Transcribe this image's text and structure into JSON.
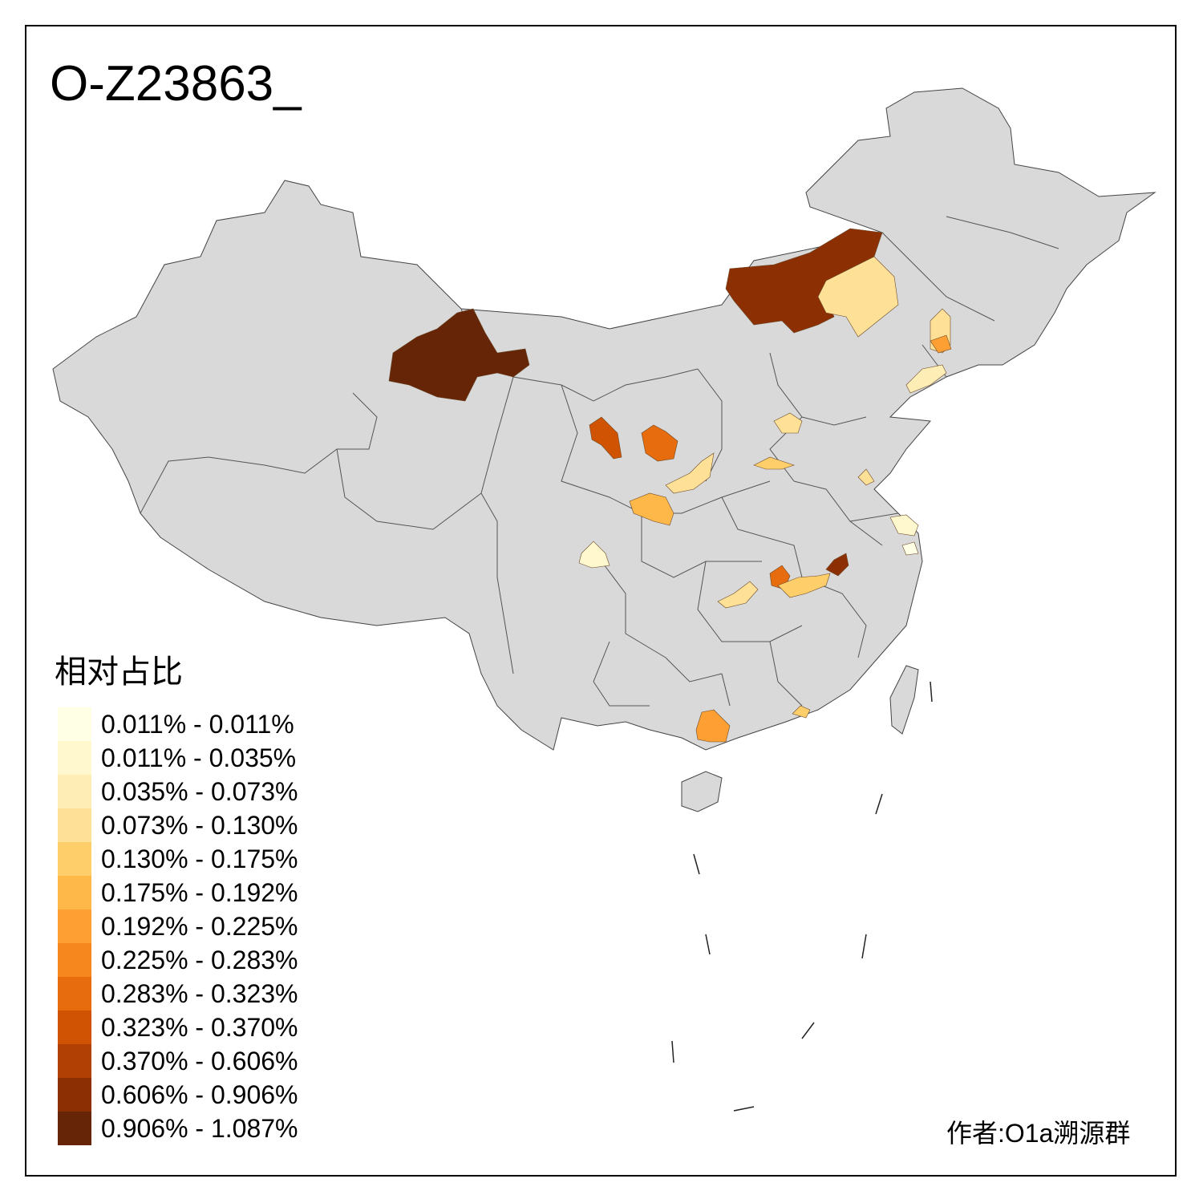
{
  "title": "O-Z23863_",
  "legend": {
    "title": "相对占比",
    "items": [
      {
        "label": "0.011% - 0.011%",
        "color": "#FFFFE5"
      },
      {
        "label": "0.011% - 0.035%",
        "color": "#FFF7CD"
      },
      {
        "label": "0.035% - 0.073%",
        "color": "#FEEDB4"
      },
      {
        "label": "0.073% - 0.130%",
        "color": "#FEE196"
      },
      {
        "label": "0.130% - 0.175%",
        "color": "#FECE6A"
      },
      {
        "label": "0.175% - 0.192%",
        "color": "#FEB84A"
      },
      {
        "label": "0.192% - 0.225%",
        "color": "#FD9F32"
      },
      {
        "label": "0.225% - 0.283%",
        "color": "#F6861E"
      },
      {
        "label": "0.283% - 0.323%",
        "color": "#E66C0E"
      },
      {
        "label": "0.323% - 0.370%",
        "color": "#D05303"
      },
      {
        "label": "0.370% - 0.606%",
        "color": "#B04003"
      },
      {
        "label": "0.606% - 0.906%",
        "color": "#8C3004"
      },
      {
        "label": "0.906% - 1.087%",
        "color": "#662506"
      }
    ]
  },
  "author": "作者:O1a溯源群",
  "colors": {
    "land": "#D9D9D9",
    "border": "#444444",
    "frame": "#000000"
  }
}
